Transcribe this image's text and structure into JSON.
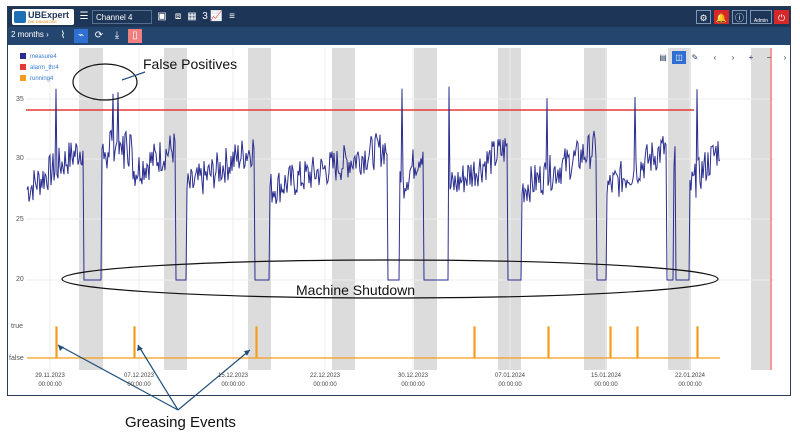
{
  "app": {
    "logo_text": "UBExpert",
    "logo_sub": "DIE DIAGNOSE",
    "channel": "Channel 4",
    "count": "3",
    "admin_label": "Admin"
  },
  "toolbar": {
    "range": "2 months"
  },
  "legend": [
    {
      "label": "measure4",
      "color": "#2b2e8f"
    },
    {
      "label": "alarm_thr4",
      "color": "#e53935"
    },
    {
      "label": "running4",
      "color": "#f59c1a"
    }
  ],
  "chart_data": {
    "type": "line",
    "y_ticks": [
      "35",
      "30",
      "25",
      "20"
    ],
    "bool_ticks": [
      "true",
      "false"
    ],
    "x_ticks": [
      {
        "date": "29.11.2023",
        "time": "00:00:00"
      },
      {
        "date": "07.12.2023",
        "time": "00:00:00"
      },
      {
        "date": "15.12.2023",
        "time": "00:00:00"
      },
      {
        "date": "22.12.2023",
        "time": "00:00:00"
      },
      {
        "date": "30.12.2023",
        "time": "00:00:00"
      },
      {
        "date": "07.01.2024",
        "time": "00:00:00"
      },
      {
        "date": "15.01.2024",
        "time": "00:00:00"
      },
      {
        "date": "22.01.2024",
        "time": "00:00:00"
      }
    ],
    "alarm_threshold": 34,
    "ylim": [
      18,
      37
    ],
    "series": [
      {
        "name": "measure4",
        "color": "#2b2e8f"
      },
      {
        "name": "alarm_thr4",
        "color": "#e53935"
      },
      {
        "name": "running4",
        "color": "#f59c1a"
      }
    ]
  },
  "annotations": {
    "false_positives": "False Positives",
    "machine_shutdown": "Machine Shutdown",
    "greasing_events": "Greasing Events"
  }
}
